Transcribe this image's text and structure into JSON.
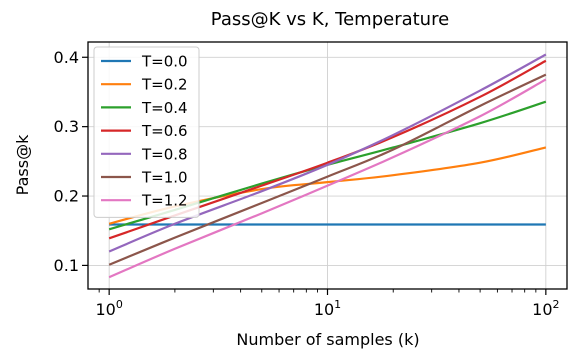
{
  "chart_data": {
    "type": "line",
    "title": "Pass@K vs K, Temperature",
    "xlabel": "Number of samples (k)",
    "ylabel": "Pass@k",
    "xscale": "log",
    "xlim": [
      0.8,
      125
    ],
    "ylim": [
      0.066,
      0.422
    ],
    "xticks": [
      {
        "value": 1,
        "base": "10",
        "exp": "0"
      },
      {
        "value": 10,
        "base": "10",
        "exp": "1"
      },
      {
        "value": 100,
        "base": "10",
        "exp": "2"
      }
    ],
    "yticks": [
      {
        "value": 0.1,
        "label": "0.1"
      },
      {
        "value": 0.2,
        "label": "0.2"
      },
      {
        "value": 0.3,
        "label": "0.3"
      },
      {
        "value": 0.4,
        "label": "0.4"
      }
    ],
    "grid": true,
    "legend_position": "top-left",
    "x": [
      1,
      2,
      5,
      10,
      20,
      50,
      100
    ],
    "series": [
      {
        "name": "T=0.0",
        "color": "#1f77b4",
        "values": [
          0.159,
          0.159,
          0.159,
          0.159,
          0.159,
          0.159,
          0.159
        ]
      },
      {
        "name": "T=0.2",
        "color": "#ff7f0e",
        "values": [
          0.16,
          0.185,
          0.21,
          0.22,
          0.23,
          0.248,
          0.27
        ]
      },
      {
        "name": "T=0.4",
        "color": "#2ca02c",
        "values": [
          0.152,
          0.18,
          0.218,
          0.245,
          0.27,
          0.305,
          0.336
        ]
      },
      {
        "name": "T=0.6",
        "color": "#d62728",
        "values": [
          0.139,
          0.172,
          0.215,
          0.248,
          0.285,
          0.343,
          0.395
        ]
      },
      {
        "name": "T=0.8",
        "color": "#9467bd",
        "values": [
          0.12,
          0.16,
          0.207,
          0.245,
          0.288,
          0.352,
          0.404
        ]
      },
      {
        "name": "T=1.0",
        "color": "#8c564b",
        "values": [
          0.101,
          0.14,
          0.19,
          0.228,
          0.267,
          0.33,
          0.375
        ]
      },
      {
        "name": "T=1.2",
        "color": "#e377c2",
        "values": [
          0.083,
          0.124,
          0.175,
          0.215,
          0.256,
          0.315,
          0.368
        ]
      }
    ]
  }
}
